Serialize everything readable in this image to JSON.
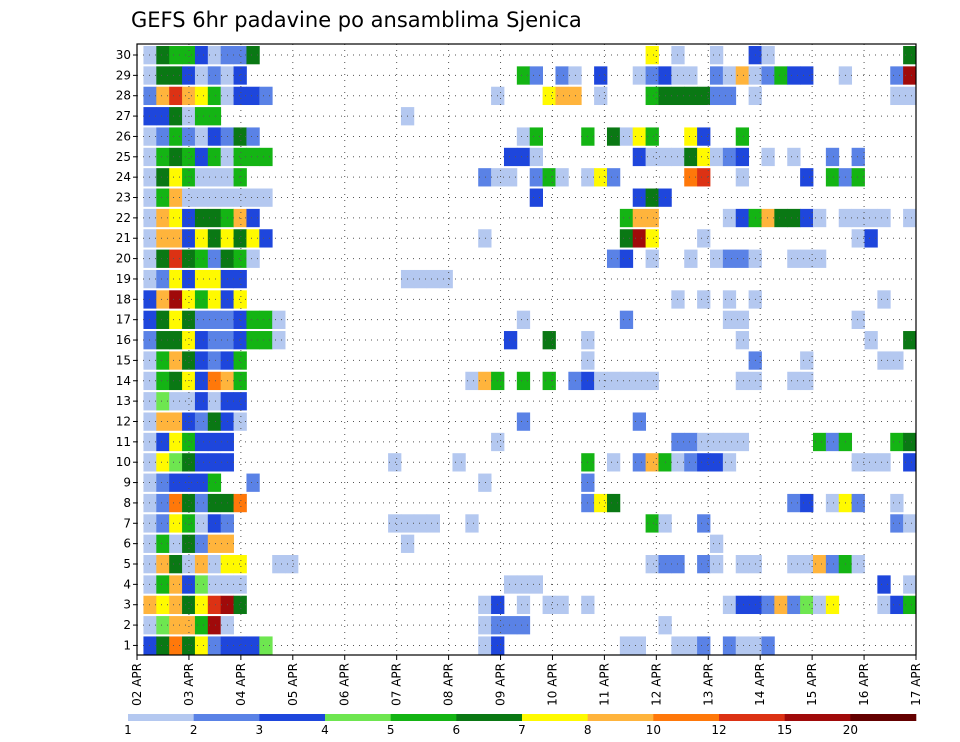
{
  "chart_data": {
    "type": "heatmap",
    "title": "GEFS 6hr padavine po ansamblima Sjenica",
    "xlabel": "",
    "ylabel": "",
    "x_ticks": [
      "02 APR",
      "03 APR",
      "04 APR",
      "05 APR",
      "06 APR",
      "07 APR",
      "08 APR",
      "09 APR",
      "10 APR",
      "11 APR",
      "12 APR",
      "13 APR",
      "14 APR",
      "15 APR",
      "16 APR",
      "17 APR"
    ],
    "y_ticks": [
      "1",
      "2",
      "3",
      "4",
      "5",
      "6",
      "7",
      "8",
      "9",
      "10",
      "11",
      "12",
      "13",
      "14",
      "15",
      "16",
      "17",
      "18",
      "19",
      "20",
      "21",
      "22",
      "23",
      "24",
      "25",
      "26",
      "27",
      "28",
      "29",
      "30"
    ],
    "n_timesteps": 61,
    "n_members": 30,
    "colorbar": {
      "labels": [
        "1",
        "2",
        "3",
        "4",
        "5",
        "6",
        "7",
        "8",
        "10",
        "12",
        "15",
        "20"
      ],
      "colors": [
        "#b4c8f0",
        "#5a82e6",
        "#1e46dc",
        "#6ee650",
        "#14b414",
        "#0a7814",
        "#fffa00",
        "#ffb43c",
        "#ff780a",
        "#dc3214",
        "#a00a0a",
        "#640000"
      ]
    },
    "values": {
      "1": {
        "1": 3,
        "2": 6,
        "3": 9,
        "4": 6,
        "5": 7,
        "6": 2,
        "7": 3,
        "8": 3,
        "9": 3,
        "10": 4,
        "27": 1,
        "28": 3,
        "38": 1,
        "39": 1,
        "42": 1,
        "43": 1,
        "44": 2,
        "46": 2,
        "47": 1,
        "48": 1,
        "49": 2
      },
      "2": {
        "1": 1,
        "2": 4,
        "3": 8,
        "4": 8,
        "5": 5,
        "6": 11,
        "7": 1,
        "27": 1,
        "28": 2,
        "29": 2,
        "30": 2,
        "41": 1
      },
      "3": {
        "1": 8,
        "2": 7,
        "3": 8,
        "4": 6,
        "5": 7,
        "6": 10,
        "7": 11,
        "8": 6,
        "27": 1,
        "28": 3,
        "30": 1,
        "32": 1,
        "33": 1,
        "35": 1,
        "46": 1,
        "47": 3,
        "48": 3,
        "49": 2,
        "50": 8,
        "51": 2,
        "52": 4,
        "53": 1,
        "54": 7,
        "58": 1,
        "59": 3,
        "60": 5,
        "61": 6
      },
      "4": {
        "1": 1,
        "2": 5,
        "3": 8,
        "4": 3,
        "5": 4,
        "6": 1,
        "7": 1,
        "8": 1,
        "29": 1,
        "30": 1,
        "31": 1,
        "58": 3,
        "60": 1,
        "61": 3
      },
      "5": {
        "1": 1,
        "2": 8,
        "3": 6,
        "4": 1,
        "5": 8,
        "6": 1,
        "7": 7,
        "8": 7,
        "11": 1,
        "12": 1,
        "40": 1,
        "41": 2,
        "42": 2,
        "44": 2,
        "45": 1,
        "47": 1,
        "48": 1,
        "51": 1,
        "52": 1,
        "53": 8,
        "54": 2,
        "55": 5,
        "56": 1,
        "61": 2
      },
      "6": {
        "1": 1,
        "2": 5,
        "3": 1,
        "4": 6,
        "5": 2,
        "6": 8,
        "7": 8,
        "21": 1,
        "45": 1
      },
      "7": {
        "1": 1,
        "2": 2,
        "3": 7,
        "4": 5,
        "5": 1,
        "6": 3,
        "7": 2,
        "20": 1,
        "21": 1,
        "22": 1,
        "23": 1,
        "26": 1,
        "40": 5,
        "41": 1,
        "44": 2,
        "59": 2,
        "60": 1,
        "61": 3
      },
      "8": {
        "1": 1,
        "2": 2,
        "3": 9,
        "4": 6,
        "5": 2,
        "6": 6,
        "7": 6,
        "8": 9,
        "35": 2,
        "36": 7,
        "37": 6,
        "51": 2,
        "52": 3,
        "54": 1,
        "55": 7,
        "56": 2,
        "59": 1
      },
      "9": {
        "1": 1,
        "2": 2,
        "3": 3,
        "4": 3,
        "5": 3,
        "6": 5,
        "9": 2,
        "27": 1,
        "35": 2
      },
      "10": {
        "1": 1,
        "2": 7,
        "3": 4,
        "4": 6,
        "5": 3,
        "6": 3,
        "7": 3,
        "20": 1,
        "25": 1,
        "35": 5,
        "37": 1,
        "39": 2,
        "40": 8,
        "41": 5,
        "42": 1,
        "43": 2,
        "44": 3,
        "45": 3,
        "46": 1,
        "56": 1,
        "57": 1,
        "58": 1,
        "60": 3
      },
      "11": {
        "1": 1,
        "2": 3,
        "3": 7,
        "4": 5,
        "5": 3,
        "6": 3,
        "7": 3,
        "28": 1,
        "42": 2,
        "43": 2,
        "44": 1,
        "45": 1,
        "46": 1,
        "47": 1,
        "53": 5,
        "54": 2,
        "55": 5,
        "59": 5,
        "60": 6
      },
      "12": {
        "1": 1,
        "2": 8,
        "3": 8,
        "4": 3,
        "5": 2,
        "6": 6,
        "7": 3,
        "8": 1,
        "30": 2,
        "39": 2
      },
      "13": {
        "1": 1,
        "2": 4,
        "3": 1,
        "4": 1,
        "5": 3,
        "6": 1,
        "7": 3,
        "8": 3
      },
      "14": {
        "1": 1,
        "2": 5,
        "3": 6,
        "4": 7,
        "5": 3,
        "6": 9,
        "7": 8,
        "8": 5,
        "26": 1,
        "27": 8,
        "28": 5,
        "30": 5,
        "32": 5,
        "34": 2,
        "35": 3,
        "36": 1,
        "37": 1,
        "38": 1,
        "39": 1,
        "40": 1,
        "47": 1,
        "48": 1,
        "51": 1,
        "52": 1
      },
      "15": {
        "1": 1,
        "2": 5,
        "3": 8,
        "4": 6,
        "5": 3,
        "6": 2,
        "7": 3,
        "8": 5,
        "35": 1,
        "48": 2,
        "52": 1,
        "58": 1,
        "59": 1
      },
      "16": {
        "1": 2,
        "2": 6,
        "3": 6,
        "4": 7,
        "5": 3,
        "6": 2,
        "7": 2,
        "8": 3,
        "9": 5,
        "10": 5,
        "11": 1,
        "29": 3,
        "32": 6,
        "35": 1,
        "47": 1,
        "57": 1,
        "60": 6,
        "61": 3
      },
      "17": {
        "1": 3,
        "2": 6,
        "3": 7,
        "4": 6,
        "5": 2,
        "6": 2,
        "7": 2,
        "8": 3,
        "9": 5,
        "10": 5,
        "11": 1,
        "30": 1,
        "38": 2,
        "46": 1,
        "47": 1,
        "56": 1
      },
      "18": {
        "1": 3,
        "2": 8,
        "3": 11,
        "4": 7,
        "5": 5,
        "6": 7,
        "7": 3,
        "8": 7,
        "42": 1,
        "44": 1,
        "46": 1,
        "48": 1,
        "58": 1
      },
      "19": {
        "1": 1,
        "2": 2,
        "3": 7,
        "4": 3,
        "5": 7,
        "6": 7,
        "7": 3,
        "8": 3,
        "21": 1,
        "22": 1,
        "23": 1,
        "24": 1,
        "61": 1
      },
      "20": {
        "1": 1,
        "2": 6,
        "3": 10,
        "4": 6,
        "5": 5,
        "6": 2,
        "7": 6,
        "8": 5,
        "9": 1,
        "37": 2,
        "38": 3,
        "40": 1,
        "43": 1,
        "45": 1,
        "46": 2,
        "47": 2,
        "48": 1,
        "51": 1,
        "52": 1,
        "53": 1
      },
      "21": {
        "1": 1,
        "2": 8,
        "3": 8,
        "4": 3,
        "5": 7,
        "6": 6,
        "7": 7,
        "8": 6,
        "9": 7,
        "10": 3,
        "27": 1,
        "38": 6,
        "39": 11,
        "40": 7,
        "44": 1,
        "56": 1,
        "57": 3
      },
      "22": {
        "1": 1,
        "2": 8,
        "3": 7,
        "4": 3,
        "5": 6,
        "6": 6,
        "7": 5,
        "8": 8,
        "9": 3,
        "38": 5,
        "39": 8,
        "40": 8,
        "46": 1,
        "47": 3,
        "48": 5,
        "49": 8,
        "50": 6,
        "51": 6,
        "52": 3,
        "53": 1,
        "55": 1,
        "56": 1,
        "57": 1,
        "58": 1,
        "60": 1
      },
      "23": {
        "1": 1,
        "2": 5,
        "3": 8,
        "4": 1,
        "5": 1,
        "6": 1,
        "7": 1,
        "8": 1,
        "9": 1,
        "10": 1,
        "31": 3,
        "39": 3,
        "40": 6,
        "41": 3
      },
      "24": {
        "1": 1,
        "2": 6,
        "3": 7,
        "4": 5,
        "5": 1,
        "6": 1,
        "7": 1,
        "8": 5,
        "27": 2,
        "28": 1,
        "29": 1,
        "31": 2,
        "32": 5,
        "33": 1,
        "35": 1,
        "36": 7,
        "37": 2,
        "43": 9,
        "44": 10,
        "47": 1,
        "52": 3,
        "54": 5,
        "55": 2,
        "56": 5
      },
      "25": {
        "1": 1,
        "2": 5,
        "3": 6,
        "4": 5,
        "5": 3,
        "6": 5,
        "7": 1,
        "8": 5,
        "9": 5,
        "10": 5,
        "29": 3,
        "30": 3,
        "31": 1,
        "39": 3,
        "40": 1,
        "41": 1,
        "42": 1,
        "43": 6,
        "44": 7,
        "45": 1,
        "46": 2,
        "47": 3,
        "49": 1,
        "51": 1,
        "54": 2,
        "56": 2
      },
      "26": {
        "1": 1,
        "2": 2,
        "3": 5,
        "4": 2,
        "5": 1,
        "6": 3,
        "7": 2,
        "8": 6,
        "9": 2,
        "30": 1,
        "31": 5,
        "35": 5,
        "37": 6,
        "38": 1,
        "39": 7,
        "40": 5,
        "43": 7,
        "44": 3,
        "47": 5,
        "61": 1
      },
      "27": {
        "1": 3,
        "2": 3,
        "3": 6,
        "4": 1,
        "5": 5,
        "6": 5,
        "21": 1
      },
      "28": {
        "1": 2,
        "2": 8,
        "3": 10,
        "4": 8,
        "5": 7,
        "6": 5,
        "7": 1,
        "8": 3,
        "9": 3,
        "10": 2,
        "28": 1,
        "32": 7,
        "33": 8,
        "34": 8,
        "36": 1,
        "40": 5,
        "41": 6,
        "42": 6,
        "43": 6,
        "44": 6,
        "45": 2,
        "46": 2,
        "48": 1,
        "59": 1,
        "60": 1
      },
      "29": {
        "1": 1,
        "2": 6,
        "3": 6,
        "4": 3,
        "5": 1,
        "6": 2,
        "7": 1,
        "8": 3,
        "30": 5,
        "31": 2,
        "33": 2,
        "34": 1,
        "36": 3,
        "39": 1,
        "40": 2,
        "41": 3,
        "42": 1,
        "43": 1,
        "45": 2,
        "46": 1,
        "47": 8,
        "48": 1,
        "49": 2,
        "50": 5,
        "51": 3,
        "52": 3,
        "55": 1,
        "59": 2,
        "60": 11,
        "61": 3
      },
      "30": {
        "1": 1,
        "2": 6,
        "3": 5,
        "4": 5,
        "5": 3,
        "6": 1,
        "7": 2,
        "8": 2,
        "9": 6,
        "40": 7,
        "42": 1,
        "45": 1,
        "48": 3,
        "49": 1,
        "60": 6
      }
    }
  }
}
